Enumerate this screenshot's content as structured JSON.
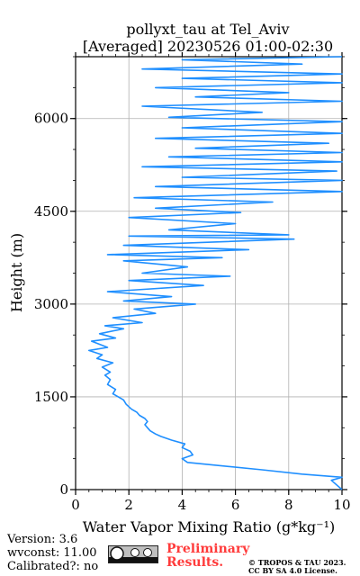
{
  "chart_data": {
    "type": "line",
    "title_line1": "pollyxt_tau at Tel_Aviv",
    "title_line2": "[Averaged] 20230526 01:00-02:30",
    "xlabel": "Water Vapor Mixing Ratio (g*kg⁻¹)",
    "ylabel": "Height (m)",
    "xlim": [
      0,
      10
    ],
    "ylim": [
      0,
      7000
    ],
    "xticks": [
      "0",
      "2",
      "4",
      "6",
      "8",
      "10"
    ],
    "yticks": [
      "0",
      "1500",
      "3000",
      "4500",
      "6000"
    ],
    "grid": true,
    "line_color": "#1f8fff",
    "series": [
      {
        "name": "",
        "points": [
          [
            10.0,
            0
          ],
          [
            9.6,
            150
          ],
          [
            10.0,
            200
          ],
          [
            8.5,
            250
          ],
          [
            7.0,
            320
          ],
          [
            4.2,
            440
          ],
          [
            4.0,
            500
          ],
          [
            4.4,
            560
          ],
          [
            4.3,
            620
          ],
          [
            4.0,
            680
          ],
          [
            4.1,
            740
          ],
          [
            3.6,
            800
          ],
          [
            3.2,
            860
          ],
          [
            3.0,
            900
          ],
          [
            2.8,
            950
          ],
          [
            2.7,
            1000
          ],
          [
            2.6,
            1050
          ],
          [
            2.7,
            1100
          ],
          [
            2.6,
            1150
          ],
          [
            2.4,
            1200
          ],
          [
            2.3,
            1250
          ],
          [
            2.1,
            1300
          ],
          [
            1.9,
            1380
          ],
          [
            1.8,
            1450
          ],
          [
            1.6,
            1500
          ],
          [
            1.4,
            1550
          ],
          [
            1.5,
            1620
          ],
          [
            1.2,
            1700
          ],
          [
            1.3,
            1780
          ],
          [
            1.1,
            1850
          ],
          [
            1.3,
            1900
          ],
          [
            1.0,
            1980
          ],
          [
            1.4,
            2050
          ],
          [
            0.8,
            2120
          ],
          [
            1.0,
            2180
          ],
          [
            0.5,
            2250
          ],
          [
            1.2,
            2300
          ],
          [
            0.6,
            2400
          ],
          [
            1.5,
            2450
          ],
          [
            0.9,
            2520
          ],
          [
            1.8,
            2600
          ],
          [
            1.1,
            2650
          ],
          [
            2.5,
            2700
          ],
          [
            1.4,
            2780
          ],
          [
            3.0,
            2850
          ],
          [
            2.2,
            2920
          ],
          [
            4.5,
            3000
          ],
          [
            1.8,
            3050
          ],
          [
            3.6,
            3120
          ],
          [
            1.2,
            3200
          ],
          [
            4.8,
            3300
          ],
          [
            2.0,
            3380
          ],
          [
            5.8,
            3450
          ],
          [
            2.5,
            3500
          ],
          [
            4.2,
            3600
          ],
          [
            1.8,
            3700
          ],
          [
            5.5,
            3750
          ],
          [
            1.2,
            3800
          ],
          [
            6.5,
            3880
          ],
          [
            1.8,
            3950
          ],
          [
            8.2,
            4050
          ],
          [
            2.0,
            4100
          ],
          [
            8.0,
            4120
          ],
          [
            3.5,
            4200
          ],
          [
            6.0,
            4300
          ],
          [
            2.0,
            4400
          ],
          [
            6.2,
            4480
          ],
          [
            3.0,
            4550
          ],
          [
            7.4,
            4650
          ],
          [
            2.2,
            4720
          ],
          [
            10.0,
            4820
          ],
          [
            3.0,
            4900
          ],
          [
            10.0,
            5000
          ],
          [
            4.0,
            5050
          ],
          [
            9.8,
            5150
          ],
          [
            2.5,
            5220
          ],
          [
            10.0,
            5300
          ],
          [
            3.5,
            5380
          ],
          [
            10.0,
            5450
          ],
          [
            4.5,
            5520
          ],
          [
            9.5,
            5600
          ],
          [
            3.0,
            5680
          ],
          [
            10.0,
            5760
          ],
          [
            4.0,
            5850
          ],
          [
            10.0,
            5950
          ],
          [
            3.5,
            6020
          ],
          [
            7.0,
            6100
          ],
          [
            2.5,
            6200
          ],
          [
            10.0,
            6280
          ],
          [
            4.5,
            6350
          ],
          [
            8.0,
            6420
          ],
          [
            3.0,
            6500
          ],
          [
            10.0,
            6580
          ],
          [
            4.0,
            6650
          ],
          [
            10.0,
            6720
          ],
          [
            2.5,
            6800
          ],
          [
            8.5,
            6880
          ],
          [
            4.0,
            6950
          ],
          [
            10.0,
            7000
          ]
        ]
      }
    ]
  },
  "footer": {
    "version": "Version: 3.6",
    "wvconst": "wvconst:  11.00",
    "calibrated": "Calibrated?: no",
    "preliminary_1": "Preliminary",
    "preliminary_2": "Results.",
    "copyright_1": "© TROPOS & TAU 2023.",
    "copyright_2": "CC BY SA 4.0 License.",
    "preliminary_color": "#ff3b3b"
  }
}
